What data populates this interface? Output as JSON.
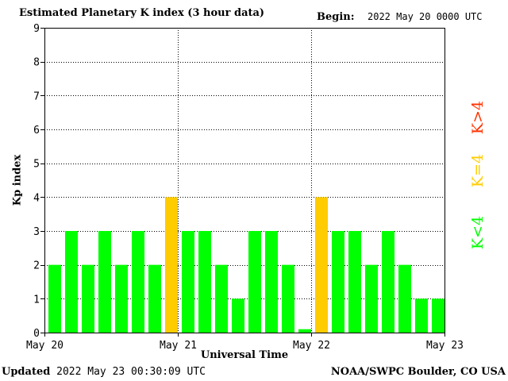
{
  "header": {
    "title": "Estimated Planetary K index (3 hour data)",
    "begin_label": "Begin:",
    "begin_value": "2022 May 20 0000 UTC"
  },
  "footer": {
    "updated_label": "Updated",
    "updated_value": "2022 May 23 00:30:09 UTC",
    "credit": "NOAA/SWPC Boulder, CO USA"
  },
  "legend": [
    {
      "label": "K<4",
      "color": "#00ff00"
    },
    {
      "label": "K=4",
      "color": "#ffcc00"
    },
    {
      "label": "K>4",
      "color": "#ff3300"
    }
  ],
  "chart_data": {
    "type": "bar",
    "title": "Estimated Planetary K index (3 hour data)",
    "xlabel": "Universal Time",
    "ylabel": "Kp index",
    "ylim": [
      0,
      9
    ],
    "yticks": [
      0,
      1,
      2,
      3,
      4,
      5,
      6,
      7,
      8,
      9
    ],
    "xticks": [
      "May 20",
      "May 21",
      "May 22",
      "May 23"
    ],
    "grid": true,
    "values": [
      2,
      3,
      2,
      3,
      2,
      3,
      2,
      4,
      3,
      3,
      2,
      1,
      3,
      3,
      2,
      0.1,
      4,
      3,
      3,
      2,
      3,
      2,
      1,
      1
    ],
    "colors": {
      "below_4": "#00ff00",
      "equal_4": "#ffcc00",
      "above_4": "#ff3300"
    }
  }
}
